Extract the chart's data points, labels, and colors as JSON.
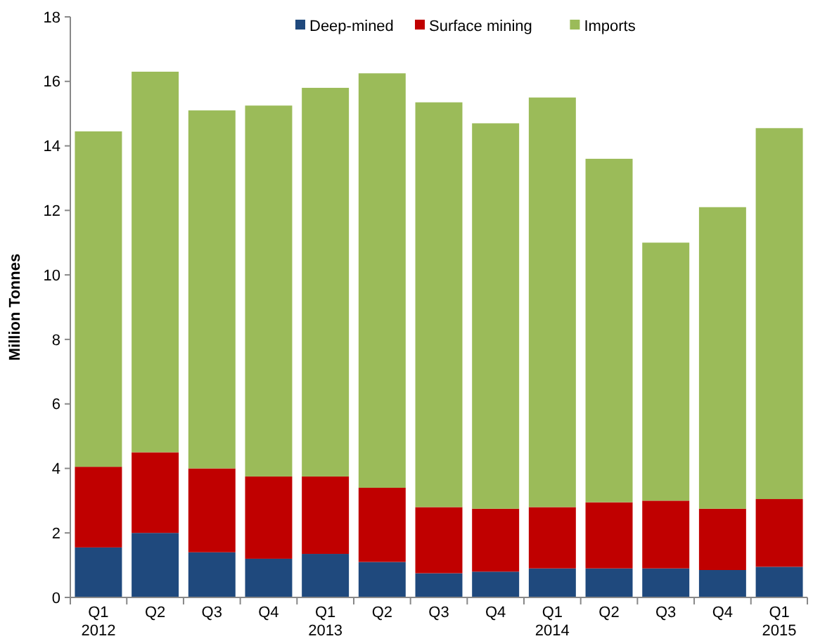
{
  "chart_data": {
    "type": "bar",
    "stacked": true,
    "ylabel": "Million Tonnes",
    "legend": "top",
    "grid": false,
    "categories": [
      "Q1 2012",
      "Q2",
      "Q3",
      "Q4",
      "Q1 2013",
      "Q2",
      "Q3",
      "Q4",
      "Q1 2014",
      "Q2",
      "Q3",
      "Q4",
      "Q1 2015"
    ],
    "ylim": [
      0,
      18
    ],
    "yticks": [
      0,
      2,
      4,
      6,
      8,
      10,
      12,
      14,
      16,
      18
    ],
    "series": [
      {
        "name": "Deep-mined",
        "color": "#1f497d",
        "values": [
          1.55,
          2.0,
          1.4,
          1.2,
          1.35,
          1.1,
          0.75,
          0.8,
          0.9,
          0.9,
          0.9,
          0.85,
          0.95
        ]
      },
      {
        "name": "Surface mining",
        "color": "#c00000",
        "values": [
          2.5,
          2.5,
          2.6,
          2.55,
          2.4,
          2.3,
          2.05,
          1.95,
          1.9,
          2.05,
          2.1,
          1.9,
          2.1
        ]
      },
      {
        "name": "Imports",
        "color": "#9bbb59",
        "values": [
          10.4,
          11.8,
          11.1,
          11.5,
          12.05,
          12.85,
          12.55,
          11.95,
          12.7,
          10.65,
          8.0,
          9.35,
          11.5
        ]
      }
    ]
  }
}
